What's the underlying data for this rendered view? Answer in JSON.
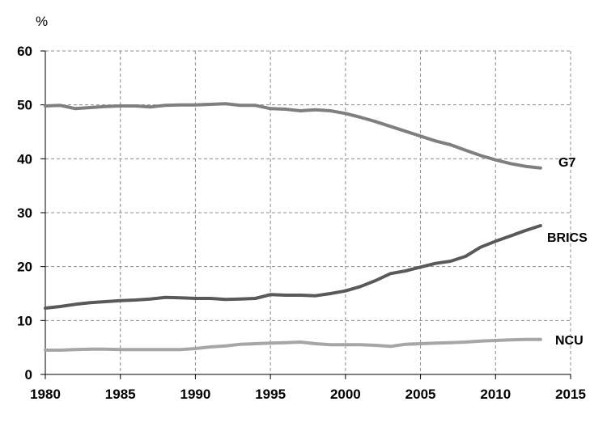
{
  "chart_data": {
    "type": "line",
    "title": "",
    "unit_label": "%",
    "xlabel": "",
    "ylabel": "",
    "xlim": [
      1980,
      2015
    ],
    "ylim": [
      0,
      60
    ],
    "x_ticks": [
      1980,
      1985,
      1990,
      1995,
      2000,
      2005,
      2010,
      2015
    ],
    "y_ticks": [
      0,
      10,
      20,
      30,
      40,
      50,
      60
    ],
    "grid": {
      "x": true,
      "y": true,
      "style": "dashed"
    },
    "legend": "none (series labeled at line ends)",
    "x": [
      1980,
      1981,
      1982,
      1983,
      1984,
      1985,
      1986,
      1987,
      1988,
      1989,
      1990,
      1991,
      1992,
      1993,
      1994,
      1995,
      1996,
      1997,
      1998,
      1999,
      2000,
      2001,
      2002,
      2003,
      2004,
      2005,
      2006,
      2007,
      2008,
      2009,
      2010,
      2011,
      2012,
      2013
    ],
    "series": [
      {
        "name": "G7",
        "color": "#7f7f7f",
        "values": [
          49.8,
          49.9,
          49.3,
          49.5,
          49.7,
          49.8,
          49.8,
          49.6,
          49.9,
          50.0,
          50.0,
          50.1,
          50.2,
          49.9,
          49.9,
          49.3,
          49.2,
          48.9,
          49.1,
          48.9,
          48.4,
          47.7,
          46.9,
          46.0,
          45.1,
          44.2,
          43.3,
          42.6,
          41.6,
          40.6,
          39.8,
          39.1,
          38.6,
          38.3
        ]
      },
      {
        "name": "BRICS",
        "color": "#595959",
        "values": [
          12.3,
          12.6,
          13.0,
          13.3,
          13.5,
          13.7,
          13.8,
          14.0,
          14.3,
          14.2,
          14.1,
          14.1,
          13.9,
          14.0,
          14.1,
          14.8,
          14.7,
          14.7,
          14.6,
          15.0,
          15.5,
          16.3,
          17.4,
          18.7,
          19.2,
          19.9,
          20.6,
          21.0,
          21.9,
          23.6,
          24.7,
          25.7,
          26.7,
          27.6
        ]
      },
      {
        "name": "NCU",
        "color": "#a6a6a6",
        "values": [
          4.5,
          4.5,
          4.6,
          4.7,
          4.7,
          4.6,
          4.6,
          4.6,
          4.6,
          4.6,
          4.8,
          5.1,
          5.3,
          5.6,
          5.7,
          5.8,
          5.9,
          6.0,
          5.7,
          5.5,
          5.5,
          5.5,
          5.4,
          5.2,
          5.6,
          5.7,
          5.8,
          5.9,
          6.0,
          6.2,
          6.3,
          6.4,
          6.5,
          6.5
        ]
      }
    ]
  }
}
